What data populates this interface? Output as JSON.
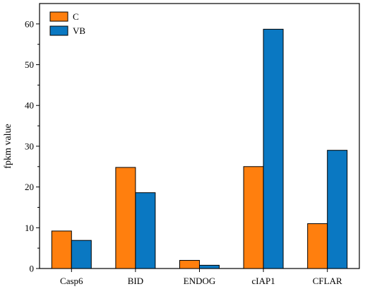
{
  "chart_data": {
    "type": "bar",
    "title": "",
    "xlabel": "",
    "ylabel": "fpkm value",
    "ylim": [
      0,
      65
    ],
    "yticks": [
      0,
      10,
      20,
      30,
      40,
      50,
      60
    ],
    "categories": [
      "Casp6",
      "BID",
      "ENDOG",
      "cIAP1",
      "CFLAR"
    ],
    "series": [
      {
        "name": "C",
        "color": "#ff7f0e",
        "values": [
          9.2,
          24.8,
          2.0,
          25.0,
          11.0
        ]
      },
      {
        "name": "VB",
        "color": "#0a78c2",
        "values": [
          6.9,
          18.6,
          0.8,
          58.7,
          29.0
        ]
      }
    ],
    "grid": false,
    "legend": "top-left"
  }
}
